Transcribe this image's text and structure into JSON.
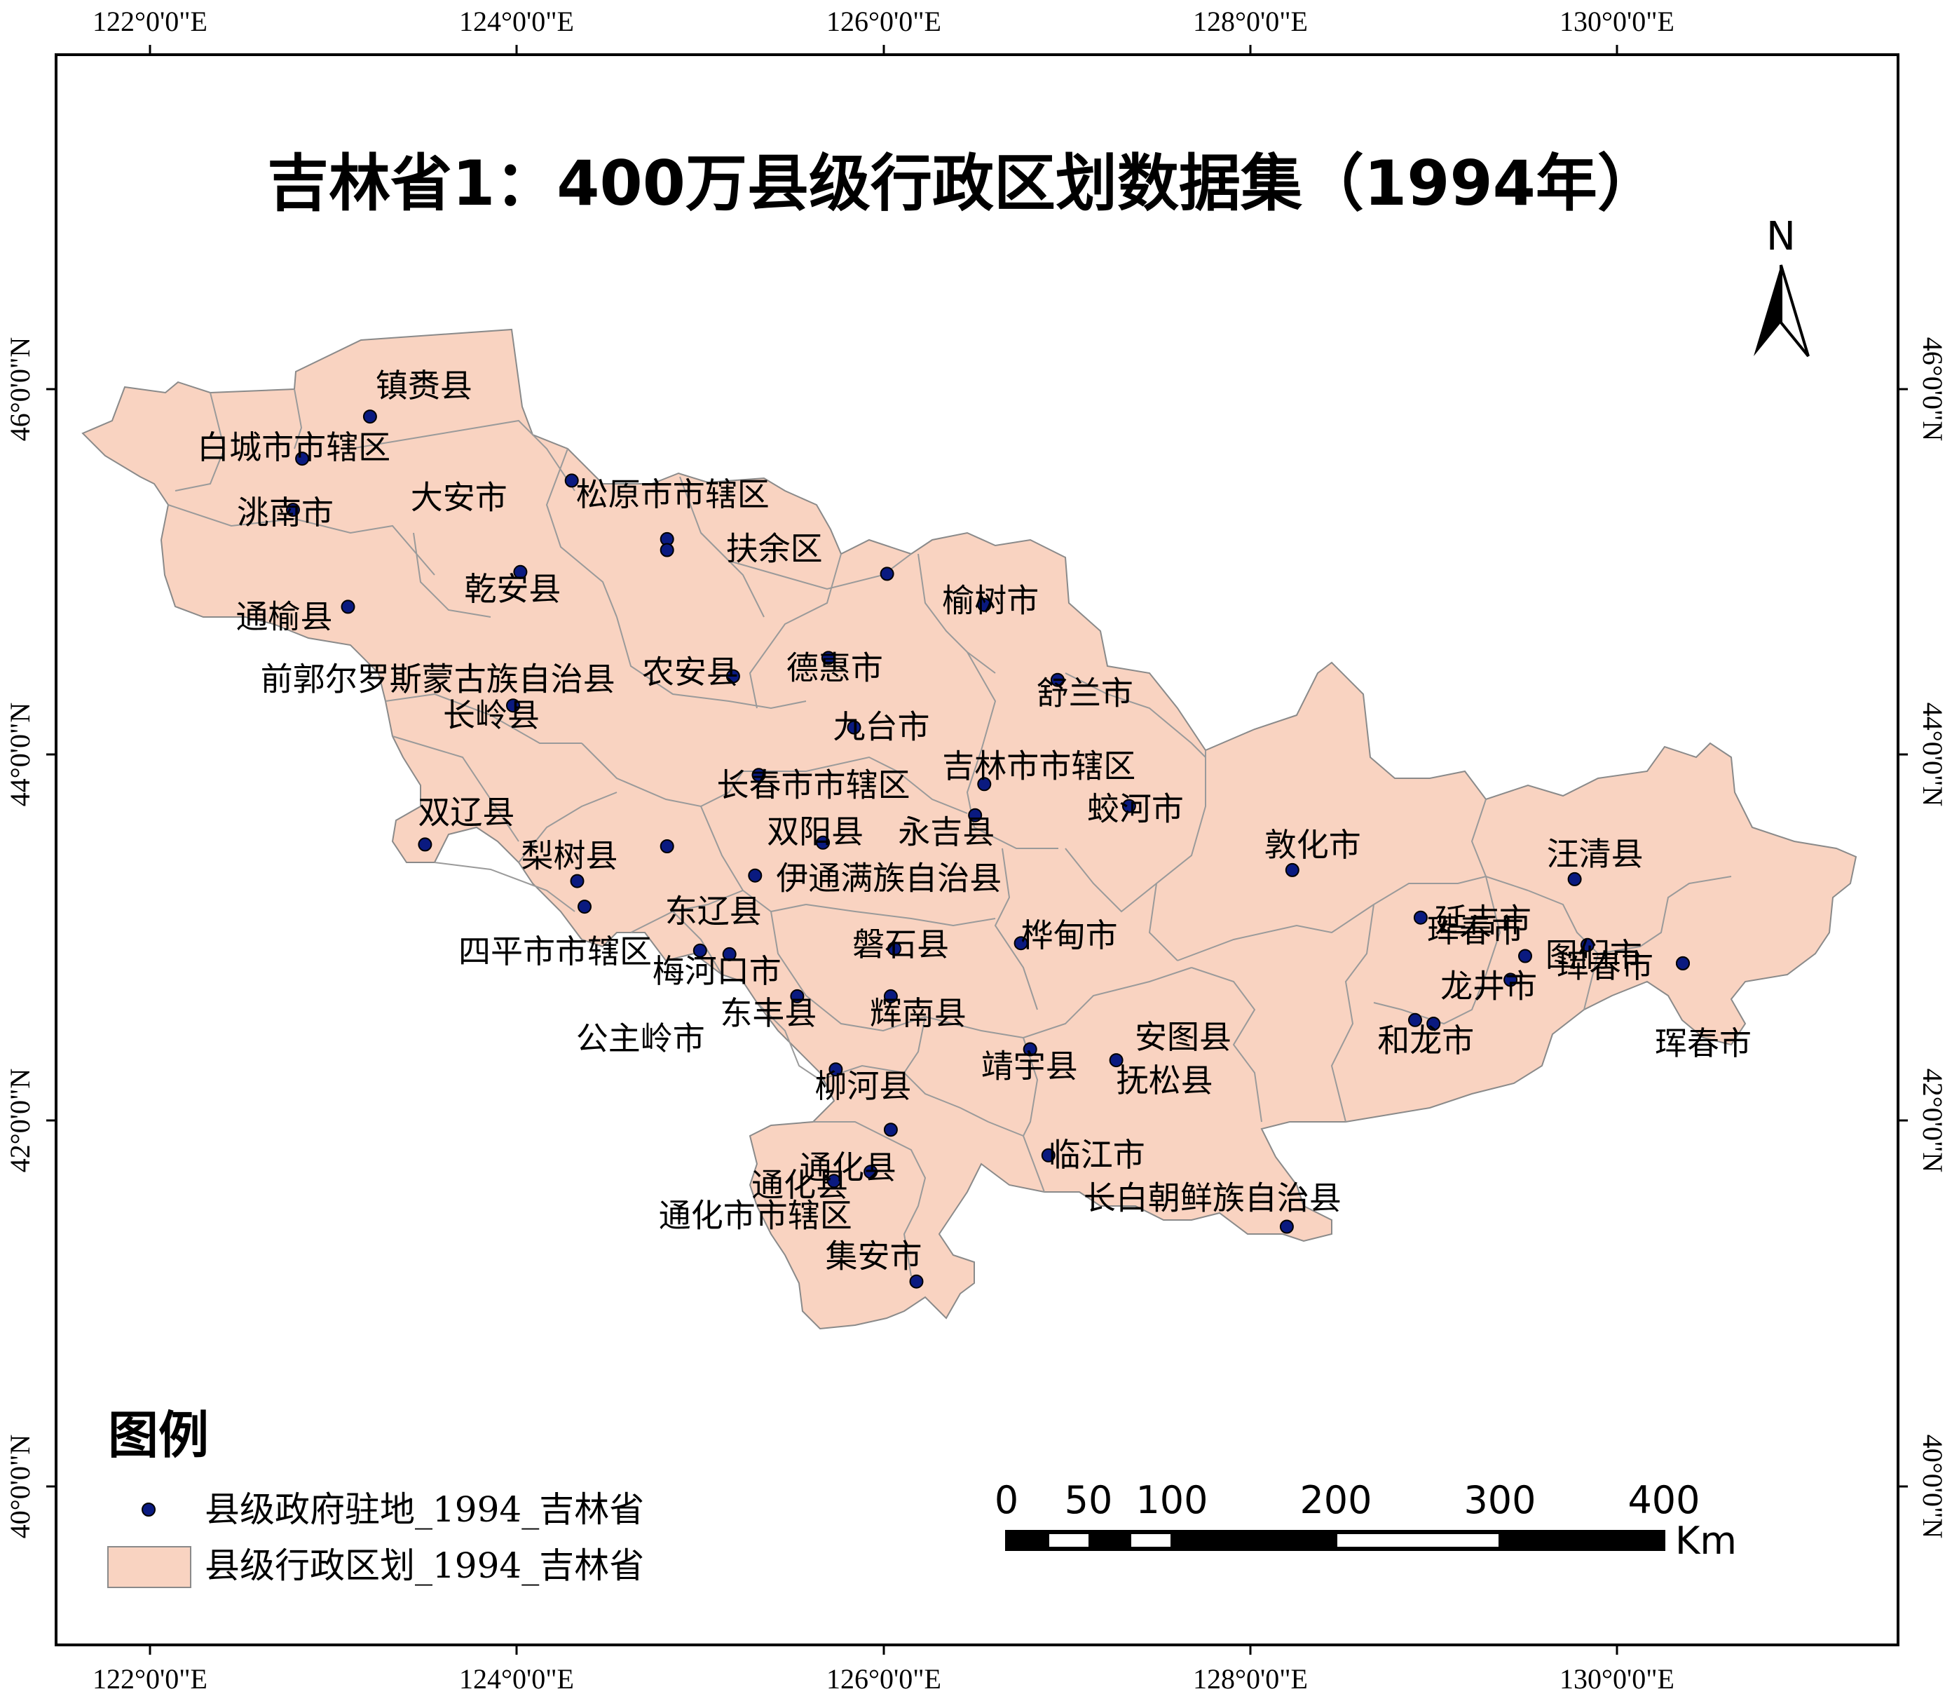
{
  "title": "吉林省1：400万县级行政区划数据集（1994年）",
  "longitude_labels": [
    "122°0'0\"E",
    "124°0'0\"E",
    "126°0'0\"E",
    "128°0'0\"E",
    "130°0'0\"E"
  ],
  "latitude_labels": [
    "46°0'0\"N",
    "44°0'0\"N",
    "42°0'0\"N",
    "40°0'0\"N"
  ],
  "north_label": "N",
  "legend": {
    "title": "图例",
    "point_label": "县级政府驻地_1994_吉林省",
    "polygon_label": "县级行政区划_1994_吉林省"
  },
  "scale_bar": {
    "labels": [
      "0",
      "50",
      "100",
      "200",
      "300",
      "400"
    ],
    "unit": "Km"
  },
  "colors": {
    "polygon_fill": "#f9d3c1",
    "boundary": "#8a8a8a",
    "point": "#0a1a80"
  },
  "places": [
    {
      "name": "镇赉县",
      "lon": 123.2,
      "lat": 45.85
    },
    {
      "name": "白城市市辖区",
      "lon": 122.83,
      "lat": 45.62
    },
    {
      "name": "洮南市",
      "lon": 122.78,
      "lat": 45.34
    },
    {
      "name": "大安市",
      "lon": 124.3,
      "lat": 45.5
    },
    {
      "name": "松原市市辖区",
      "lon": 124.82,
      "lat": 45.18
    },
    {
      "name": "扶余区",
      "lon": 126.02,
      "lat": 44.99
    },
    {
      "name": "乾安县",
      "lon": 124.02,
      "lat": 45.0
    },
    {
      "name": "通榆县",
      "lon": 123.08,
      "lat": 44.81
    },
    {
      "name": "榆树市",
      "lon": 126.55,
      "lat": 44.82
    },
    {
      "name": "前郭尔罗斯蒙古族自治县",
      "lon": 124.82,
      "lat": 45.12
    },
    {
      "name": "农安县",
      "lon": 125.18,
      "lat": 44.43
    },
    {
      "name": "德惠市",
      "lon": 125.7,
      "lat": 44.53
    },
    {
      "name": "舒兰市",
      "lon": 126.95,
      "lat": 44.41
    },
    {
      "name": "长岭县",
      "lon": 123.98,
      "lat": 44.27
    },
    {
      "name": "九台市",
      "lon": 125.84,
      "lat": 44.15
    },
    {
      "name": "吉林市市辖区",
      "lon": 126.55,
      "lat": 43.84
    },
    {
      "name": "公主岭市",
      "lon": 124.82,
      "lat": 43.5
    },
    {
      "name": "长春市市辖区",
      "lon": 125.32,
      "lat": 43.89
    },
    {
      "name": "双辽县",
      "lon": 123.5,
      "lat": 43.51
    },
    {
      "name": "蛟河市",
      "lon": 127.34,
      "lat": 43.72
    },
    {
      "name": "双阳县",
      "lon": 125.67,
      "lat": 43.52
    },
    {
      "name": "永吉县",
      "lon": 126.5,
      "lat": 43.67
    },
    {
      "name": "敦化市",
      "lon": 128.23,
      "lat": 43.37
    },
    {
      "name": "汪清县",
      "lon": 129.77,
      "lat": 43.32
    },
    {
      "name": "梨树县",
      "lon": 124.33,
      "lat": 43.31
    },
    {
      "name": "伊通满族自治县",
      "lon": 125.3,
      "lat": 43.34
    },
    {
      "name": "四平市市辖区",
      "lon": 124.37,
      "lat": 43.17
    },
    {
      "name": "东辽县",
      "lon": 125.0,
      "lat": 42.93
    },
    {
      "name": "延吉市",
      "lon": 128.93,
      "lat": 43.11
    },
    {
      "name": "图们市",
      "lon": 129.84,
      "lat": 42.96
    },
    {
      "name": "磐石县",
      "lon": 126.06,
      "lat": 42.94
    },
    {
      "name": "桦甸市",
      "lon": 126.75,
      "lat": 42.97
    },
    {
      "name": "珲春市",
      "lon": 130.36,
      "lat": 42.86
    },
    {
      "name": "龙井市",
      "lon": 129.42,
      "lat": 42.77
    },
    {
      "name": "珲春市",
      "lon": 129.5,
      "lat": 42.9
    },
    {
      "name": "梅河口市",
      "lon": 125.16,
      "lat": 42.91
    },
    {
      "name": "东丰县",
      "lon": 125.53,
      "lat": 42.68
    },
    {
      "name": "珲春市",
      "lon": 130.36,
      "lat": 42.86
    },
    {
      "name": "辉南县",
      "lon": 126.04,
      "lat": 42.68
    },
    {
      "name": "靖宇县",
      "lon": 126.8,
      "lat": 42.39
    },
    {
      "name": "和龙市",
      "lon": 129.0,
      "lat": 42.53
    },
    {
      "name": "安图县",
      "lon": 128.9,
      "lat": 42.55
    },
    {
      "name": "抚松县",
      "lon": 127.27,
      "lat": 42.33
    },
    {
      "name": "柳河县",
      "lon": 125.74,
      "lat": 42.28
    },
    {
      "name": "临江市",
      "lon": 126.9,
      "lat": 41.81
    },
    {
      "name": "通化县",
      "lon": 125.93,
      "lat": 41.72
    },
    {
      "name": "长白朝鲜族自治县",
      "lon": 128.2,
      "lat": 41.42
    },
    {
      "name": "通化市市辖区",
      "lon": 125.73,
      "lat": 41.67
    },
    {
      "name": "通化县",
      "lon": 126.04,
      "lat": 41.95
    },
    {
      "name": "集安市",
      "lon": 126.18,
      "lat": 41.12
    }
  ]
}
